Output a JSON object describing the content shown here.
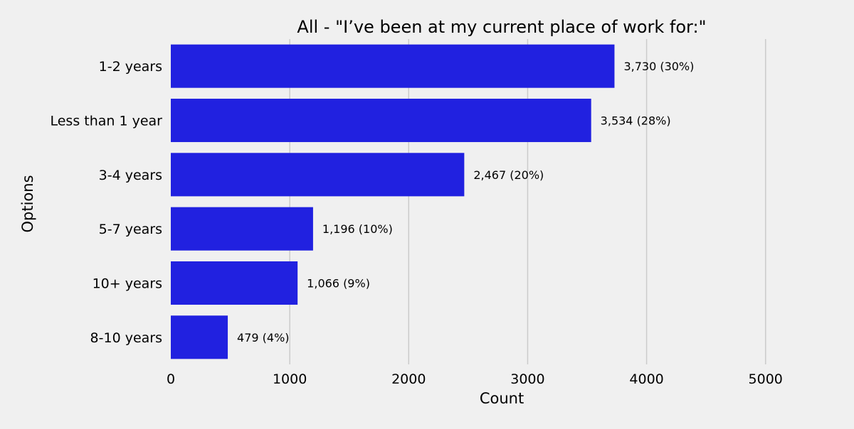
{
  "chart_data": {
    "type": "bar",
    "orientation": "horizontal",
    "title": "All - \"I’ve been at my current place of work for:\"",
    "xlabel": "Count",
    "ylabel": "Options",
    "categories": [
      "1-2 years",
      "Less than 1 year",
      "3-4 years",
      "5-7 years",
      "10+ years",
      "8-10 years"
    ],
    "values": [
      3730,
      3534,
      2467,
      1196,
      1066,
      479
    ],
    "data_labels": [
      "3,730 (30%)",
      "3,534 (28%)",
      "2,467 (20%)",
      "1,196 (10%)",
      "1,066 (9%)",
      "479 (4%)"
    ],
    "xlim": [
      0,
      5600
    ],
    "xticks": [
      0,
      1000,
      2000,
      3000,
      4000,
      5000
    ],
    "xtick_labels": [
      "0",
      "1000",
      "2000",
      "3000",
      "4000",
      "5000"
    ],
    "grid": "vertical",
    "legend": "none",
    "colors": {
      "bar": "#2121e0",
      "background": "#f0f0f0",
      "grid": "#cbcbcb",
      "text": "#000000"
    }
  }
}
